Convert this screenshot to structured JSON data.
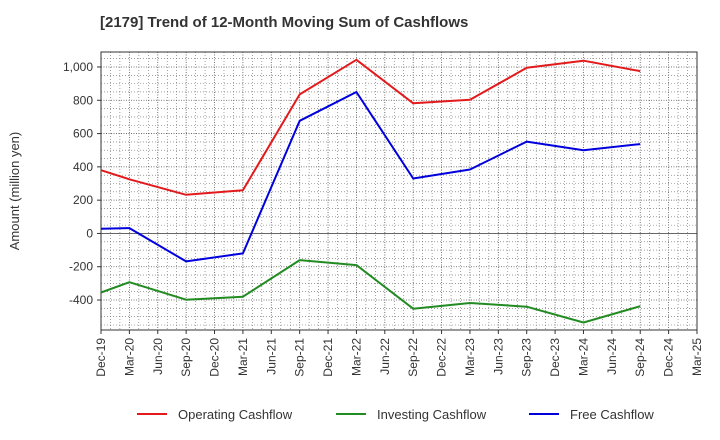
{
  "chart_data": {
    "type": "line",
    "title": "[2179]  Trend of 12-Month Moving Sum of Cashflows",
    "xlabel": "",
    "ylabel": "Amount (million yen)",
    "categories": [
      "Dec-19",
      "Mar-20",
      "Jun-20",
      "Sep-20",
      "Dec-20",
      "Mar-21",
      "Jun-21",
      "Sep-21",
      "Dec-21",
      "Mar-22",
      "Jun-22",
      "Sep-22",
      "Dec-22",
      "Mar-23",
      "Jun-23",
      "Sep-23",
      "Dec-23",
      "Mar-24",
      "Jun-24",
      "Sep-24",
      "Dec-24",
      "Mar-25"
    ],
    "ylim": [
      -580,
      1090
    ],
    "yticks": [
      -400,
      -200,
      0,
      200,
      400,
      600,
      800,
      1000
    ],
    "ytick_labels": [
      "-400",
      "-200",
      "0",
      "200",
      "400",
      "600",
      "800",
      "1,000"
    ],
    "grid": true,
    "legend_position": "bottom",
    "series": [
      {
        "name": "Operating Cashflow",
        "color": "#e31a1c",
        "values": [
          380,
          325,
          null,
          232,
          null,
          260,
          null,
          835,
          null,
          1043,
          null,
          782,
          null,
          803,
          null,
          995,
          null,
          1038,
          null,
          975,
          null,
          null
        ]
      },
      {
        "name": "Investing Cashflow",
        "color": "#228b22",
        "values": [
          -355,
          -293,
          null,
          -398,
          null,
          -380,
          null,
          -160,
          null,
          -190,
          null,
          -452,
          null,
          -418,
          null,
          -440,
          null,
          -535,
          null,
          -437,
          null,
          null
        ]
      },
      {
        "name": "Free Cashflow",
        "color": "#0000dd",
        "values": [
          28,
          32,
          null,
          -168,
          null,
          -120,
          null,
          677,
          null,
          850,
          null,
          330,
          null,
          384,
          null,
          552,
          null,
          500,
          null,
          537,
          null,
          null
        ]
      }
    ]
  }
}
